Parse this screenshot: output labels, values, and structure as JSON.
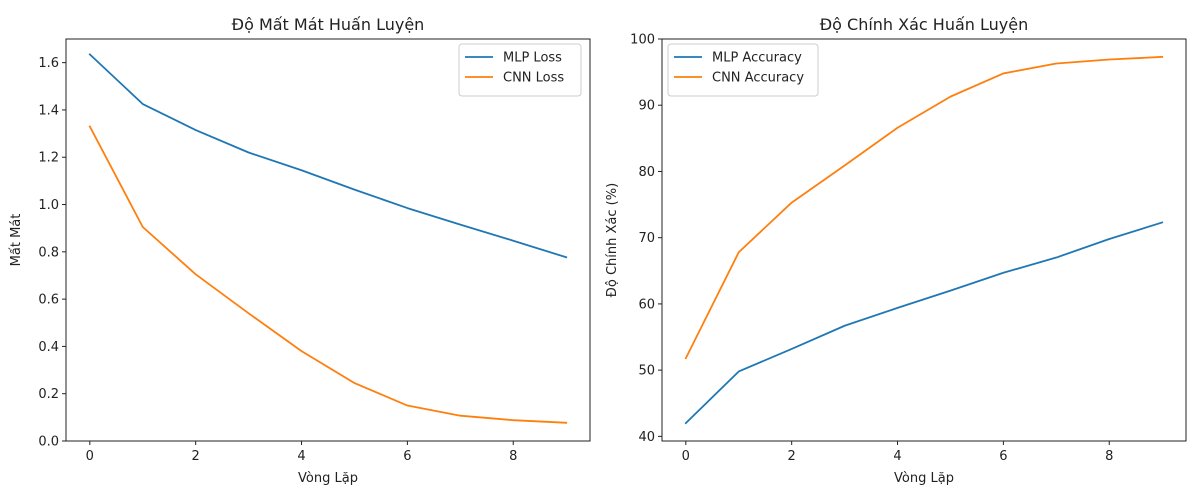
{
  "chart_data": [
    {
      "type": "line",
      "title": "Độ Mất Mát Huấn Luyện",
      "xlabel": "Vòng Lặp",
      "ylabel": "Mất Mát",
      "x": [
        0,
        1,
        2,
        3,
        4,
        5,
        6,
        7,
        8,
        9
      ],
      "xlim": [
        -0.45,
        9.45
      ],
      "ylim": [
        0,
        1.7
      ],
      "xticks": [
        0,
        2,
        4,
        6,
        8
      ],
      "yticks": [
        0.0,
        0.2,
        0.4,
        0.6,
        0.8,
        1.0,
        1.2,
        1.4,
        1.6
      ],
      "ytick_labels": [
        "0.0",
        "0.2",
        "0.4",
        "0.6",
        "0.8",
        "1.0",
        "1.2",
        "1.4",
        "1.6"
      ],
      "legend_position": "top-right",
      "grid": false,
      "series": [
        {
          "name": "MLP Loss",
          "color": "#1f77b4",
          "values": [
            1.635,
            1.425,
            1.315,
            1.22,
            1.145,
            1.063,
            0.985,
            0.915,
            0.847,
            0.777
          ]
        },
        {
          "name": "CNN Loss",
          "color": "#ff7f0e",
          "values": [
            1.33,
            0.905,
            0.705,
            0.54,
            0.38,
            0.245,
            0.15,
            0.107,
            0.088,
            0.077
          ]
        }
      ]
    },
    {
      "type": "line",
      "title": "Độ Chính Xác Huấn Luyện",
      "xlabel": "Vòng Lặp",
      "ylabel": "Độ Chính Xác (%)",
      "x": [
        0,
        1,
        2,
        3,
        4,
        5,
        6,
        7,
        8,
        9
      ],
      "xlim": [
        -0.45,
        9.45
      ],
      "ylim": [
        39.3,
        100
      ],
      "xticks": [
        0,
        2,
        4,
        6,
        8
      ],
      "yticks": [
        40,
        50,
        60,
        70,
        80,
        90,
        100
      ],
      "ytick_labels": [
        "40",
        "50",
        "60",
        "70",
        "80",
        "90",
        "100"
      ],
      "legend_position": "top-left",
      "grid": false,
      "series": [
        {
          "name": "MLP Accuracy",
          "color": "#1f77b4",
          "values": [
            42.0,
            49.8,
            53.2,
            56.7,
            59.4,
            62.0,
            64.7,
            67.0,
            69.8,
            72.3
          ]
        },
        {
          "name": "CNN Accuracy",
          "color": "#ff7f0e",
          "values": [
            51.8,
            67.8,
            75.3,
            80.9,
            86.6,
            91.3,
            94.8,
            96.3,
            96.9,
            97.3
          ]
        }
      ]
    }
  ]
}
